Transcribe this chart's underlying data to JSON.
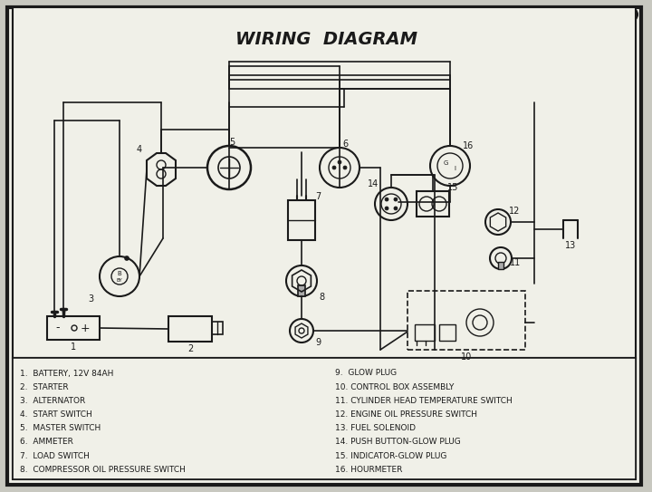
{
  "title": "WIRING  DIAGRAM",
  "bg_color": "#c8c8c0",
  "diagram_bg": "#e8e8e0",
  "line_color": "#1a1a1a",
  "legend_items_left": [
    "1.  BATTERY, 12V 84AH",
    "2.  STARTER",
    "3.  ALTERNATOR",
    "4.  START SWITCH",
    "5.  MASTER SWITCH",
    "6.  AMMETER",
    "7.  LOAD SWITCH",
    "8.  COMPRESSOR OIL PRESSURE SWITCH"
  ],
  "legend_items_right": [
    "9.  GLOW PLUG",
    "10. CONTROL BOX ASSEMBLY",
    "11. CYLINDER HEAD TEMPERATURE SWITCH",
    "12. ENGINE OIL PRESSURE SWITCH",
    "13. FUEL SOLENOID",
    "14. PUSH BUTTON-GLOW PLUG",
    "15. INDICATOR-GLOW PLUG",
    "16. HOURMETER"
  ]
}
